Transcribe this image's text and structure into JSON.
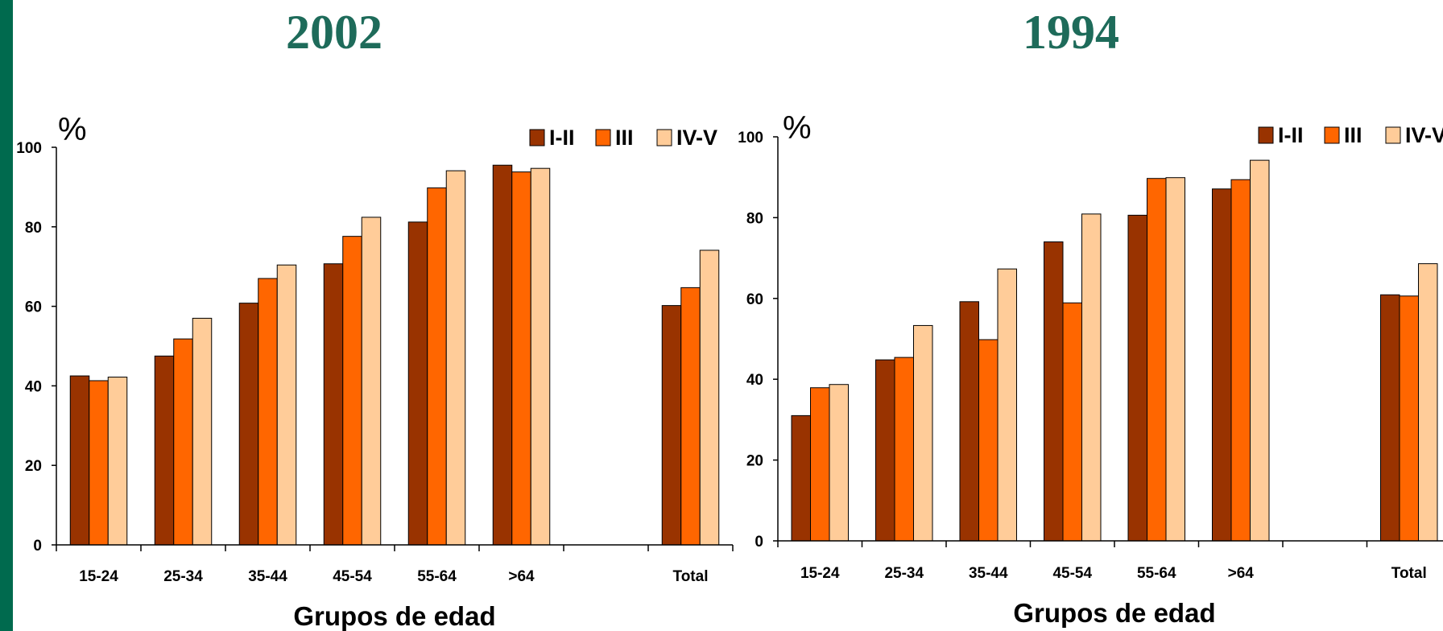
{
  "page": {
    "accent_stripe_color": "#006A4E",
    "title_color": "#1E6B5A"
  },
  "chart_data": [
    {
      "type": "bar",
      "title": "2002",
      "xlabel": "Grupos de edad",
      "ylabel": "%",
      "ylim": [
        0,
        100
      ],
      "yticks": [
        0,
        20,
        40,
        60,
        80,
        100
      ],
      "grid": false,
      "legend_position": "top-right",
      "categories": [
        "15-24",
        "25-34",
        "35-44",
        "45-54",
        "55-64",
        ">64",
        "",
        "Total"
      ],
      "series": [
        {
          "name": "I-II",
          "color": "#993300",
          "values": [
            42.5,
            47.5,
            60.8,
            70.7,
            81.2,
            95.5,
            null,
            60.2
          ]
        },
        {
          "name": "III",
          "color": "#FF6600",
          "values": [
            41.3,
            51.8,
            67.0,
            77.6,
            89.8,
            93.8,
            null,
            64.7
          ]
        },
        {
          "name": "IV-V",
          "color": "#FFCC99",
          "values": [
            42.2,
            57.0,
            70.4,
            82.4,
            94.1,
            94.7,
            null,
            74.1
          ]
        }
      ]
    },
    {
      "type": "bar",
      "title": "1994",
      "xlabel": "Grupos de edad",
      "ylabel": "%",
      "ylim": [
        0,
        100
      ],
      "yticks": [
        0,
        20,
        40,
        60,
        80,
        100
      ],
      "grid": false,
      "legend_position": "top-right",
      "categories": [
        "15-24",
        "25-34",
        "35-44",
        "45-54",
        "55-64",
        ">64",
        "",
        "Total"
      ],
      "series": [
        {
          "name": "I-II",
          "color": "#993300",
          "values": [
            31.0,
            44.8,
            59.2,
            74.0,
            80.6,
            87.1,
            null,
            60.9
          ]
        },
        {
          "name": "III",
          "color": "#FF6600",
          "values": [
            37.9,
            45.4,
            49.8,
            58.9,
            89.7,
            89.4,
            null,
            60.6
          ]
        },
        {
          "name": "IV-V",
          "color": "#FFCC99",
          "values": [
            38.7,
            53.3,
            67.3,
            80.9,
            89.9,
            94.2,
            null,
            68.6
          ]
        }
      ]
    }
  ]
}
